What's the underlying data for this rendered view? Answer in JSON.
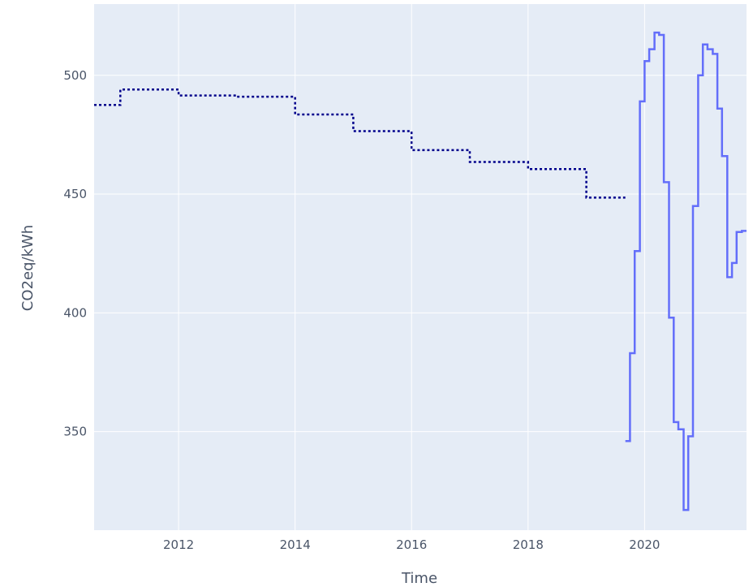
{
  "chart_data": {
    "type": "line",
    "xlabel": "Time",
    "ylabel": "CO2eq/kWh",
    "xlim": [
      2010.55,
      2021.75
    ],
    "ylim": [
      308.5,
      530
    ],
    "grid": true,
    "x_ticks": [
      2012,
      2014,
      2016,
      2018,
      2020
    ],
    "x_tick_labels": [
      "2012",
      "2014",
      "2016",
      "2018",
      "2020"
    ],
    "y_ticks": [
      350,
      400,
      450,
      500
    ],
    "y_tick_labels": [
      "350",
      "400",
      "450",
      "500"
    ],
    "colors": {
      "plot_bg": "#e5ecf6",
      "grid": "#ffffff",
      "series_dotted": "#00008b",
      "series_solid": "#636efa"
    },
    "series": [
      {
        "style": "dotted",
        "color": "#00008b",
        "x": [
          2010.55,
          2011.0,
          2012.0,
          2013.0,
          2014.0,
          2015.0,
          2016.0,
          2017.0,
          2018.0,
          2019.0,
          2019.67
        ],
        "y": [
          487.5,
          494,
          491.5,
          491,
          483.5,
          476.5,
          468.5,
          463.5,
          460.5,
          448.5,
          448.5
        ]
      },
      {
        "style": "solid",
        "color": "#636efa",
        "x": [
          2019.67,
          2019.75,
          2019.83,
          2019.92,
          2020.0,
          2020.08,
          2020.17,
          2020.25,
          2020.33,
          2020.42,
          2020.5,
          2020.58,
          2020.67,
          2020.75,
          2020.83,
          2020.92,
          2021.0,
          2021.08,
          2021.17,
          2021.25,
          2021.33,
          2021.42,
          2021.5,
          2021.58,
          2021.67,
          2021.75
        ],
        "y": [
          346,
          383,
          426,
          489,
          506,
          511,
          518,
          517,
          455,
          398,
          354,
          351,
          317,
          348,
          445,
          500,
          513,
          511,
          509,
          486,
          466,
          415,
          421,
          434,
          434.5,
          434.5
        ]
      }
    ]
  }
}
